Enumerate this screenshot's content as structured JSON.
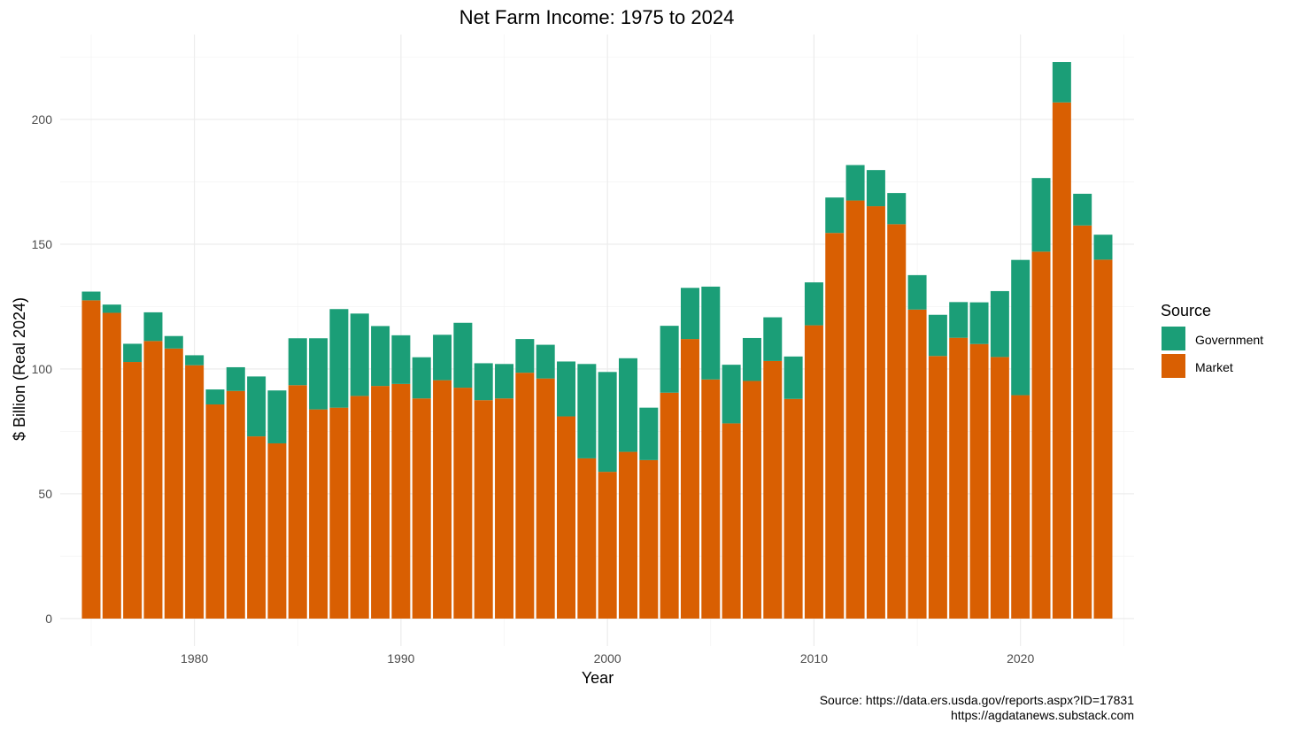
{
  "chart_data": {
    "type": "bar",
    "stacked": true,
    "title": "Net Farm Income: 1975 to 2024",
    "xlabel": "Year",
    "ylabel": "$ Billion (Real 2024)",
    "x_ticks": [
      1980,
      1990,
      2000,
      2010,
      2020
    ],
    "y_ticks": [
      0,
      50,
      100,
      150,
      200
    ],
    "xlim": [
      1973.5,
      2025.5
    ],
    "ylim": [
      -11,
      234
    ],
    "grid": true,
    "legend": {
      "title": "Source",
      "position": "right",
      "entries": [
        {
          "name": "Government",
          "color": "#1b9e77"
        },
        {
          "name": "Market",
          "color": "#d95f02"
        }
      ]
    },
    "caption": [
      "Source: https://data.ers.usda.gov/reports.aspx?ID=17831",
      "https://agdatanews.substack.com"
    ],
    "x": [
      1975,
      1976,
      1977,
      1978,
      1979,
      1980,
      1981,
      1982,
      1983,
      1984,
      1985,
      1986,
      1987,
      1988,
      1989,
      1990,
      1991,
      1992,
      1993,
      1994,
      1995,
      1996,
      1997,
      1998,
      1999,
      2000,
      2001,
      2002,
      2003,
      2004,
      2005,
      2006,
      2007,
      2008,
      2009,
      2010,
      2011,
      2012,
      2013,
      2014,
      2015,
      2016,
      2017,
      2018,
      2019,
      2020,
      2021,
      2022,
      2023,
      2024
    ],
    "series": [
      {
        "name": "Market",
        "color": "#d95f02",
        "values": [
          127.5,
          122.5,
          102.8,
          111.2,
          108.2,
          101.5,
          85.8,
          91.2,
          73.0,
          70.2,
          93.5,
          83.8,
          84.5,
          89.2,
          93.2,
          94.0,
          88.2,
          95.5,
          92.5,
          87.5,
          88.2,
          98.5,
          96.2,
          81.0,
          64.2,
          58.8,
          66.8,
          63.5,
          90.5,
          112.0,
          95.8,
          78.2,
          95.2,
          103.2,
          88.0,
          117.5,
          154.5,
          167.5,
          165.2,
          158.0,
          123.8,
          105.2,
          112.5,
          110.0,
          104.8,
          89.5,
          147.0,
          206.8,
          157.5,
          143.8
        ]
      },
      {
        "name": "Government",
        "color": "#1b9e77",
        "values": [
          3.5,
          3.3,
          7.3,
          11.5,
          5.0,
          4.0,
          6.0,
          9.5,
          24.0,
          21.2,
          18.8,
          28.5,
          39.5,
          33.0,
          24.0,
          19.5,
          16.5,
          18.2,
          26.0,
          14.8,
          13.8,
          13.5,
          13.5,
          22.0,
          37.8,
          40.0,
          37.5,
          21.0,
          26.8,
          20.5,
          37.2,
          23.5,
          17.2,
          17.5,
          17.0,
          17.2,
          14.2,
          14.2,
          14.5,
          12.5,
          13.8,
          16.5,
          14.3,
          16.7,
          26.4,
          54.2,
          29.5,
          16.2,
          12.7,
          10.0
        ]
      }
    ]
  }
}
